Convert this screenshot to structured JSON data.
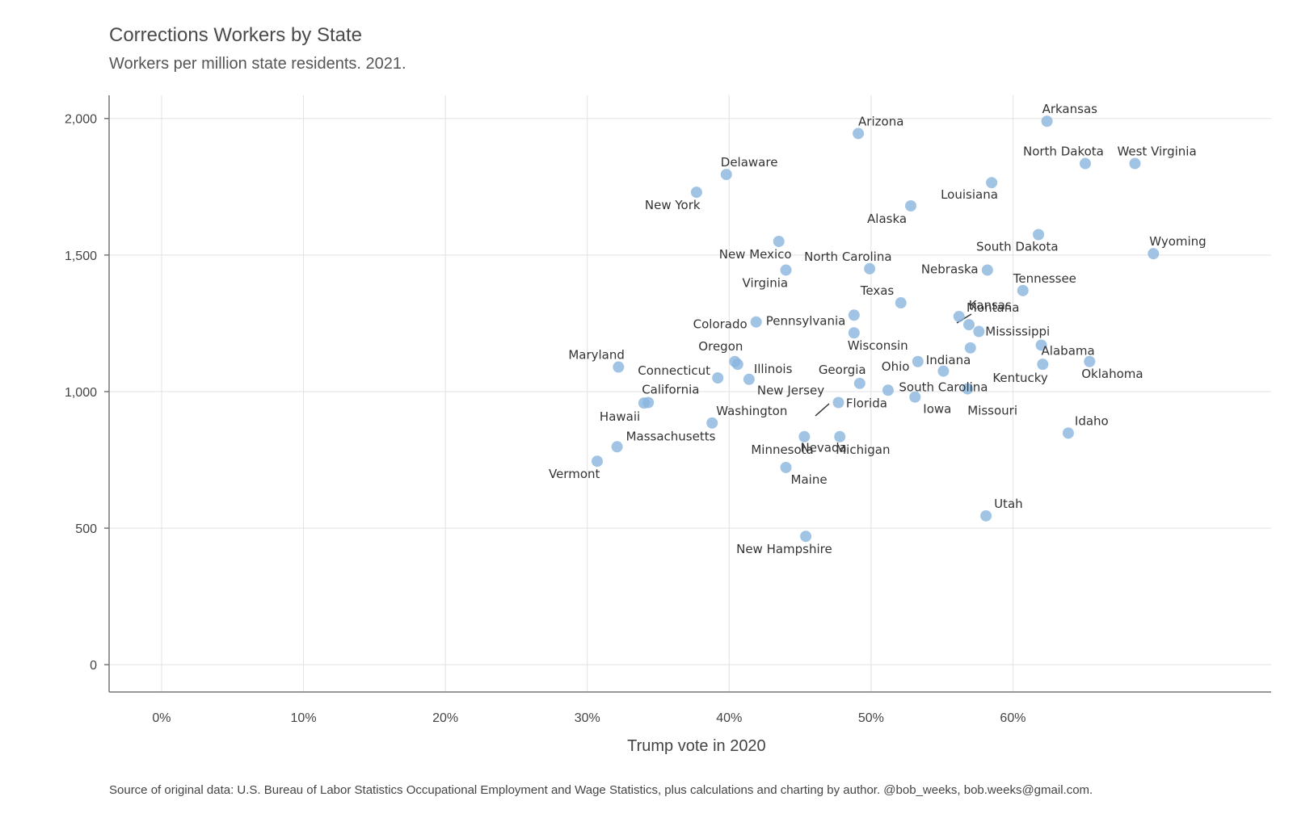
{
  "chart_data": {
    "type": "scatter",
    "title": "Corrections Workers by State",
    "subtitle": "Workers per million state residents. 2021.",
    "xlabel": "Trump vote in 2020",
    "ylabel": "",
    "xlim": [
      -3.7,
      78.2
    ],
    "ylim": [
      -100,
      2085
    ],
    "x_ticks": [
      0,
      10,
      20,
      30,
      40,
      50,
      60
    ],
    "x_tick_labels": [
      "0%",
      "10%",
      "20%",
      "30%",
      "40%",
      "50%",
      "60%"
    ],
    "y_ticks": [
      0,
      500,
      1000,
      1500,
      2000
    ],
    "y_tick_labels": [
      "0",
      "500",
      "1,000",
      "1,500",
      "2,000"
    ],
    "grid": true,
    "source": "Source of original data: U.S. Bureau of Labor Statistics Occupational Employment and Wage Statistics, plus calculations and charting by author. @bob_weeks, bob.weeks@gmail.com.",
    "points": [
      {
        "state": "Arkansas",
        "x": 62.4,
        "y": 1990
      },
      {
        "state": "Arizona",
        "x": 49.1,
        "y": 1945
      },
      {
        "state": "West Virginia",
        "x": 68.6,
        "y": 1835
      },
      {
        "state": "North Dakota",
        "x": 65.1,
        "y": 1835
      },
      {
        "state": "Delaware",
        "x": 39.8,
        "y": 1795
      },
      {
        "state": "Louisiana",
        "x": 58.5,
        "y": 1765
      },
      {
        "state": "New York",
        "x": 37.7,
        "y": 1730
      },
      {
        "state": "Alaska",
        "x": 52.8,
        "y": 1680
      },
      {
        "state": "South Dakota",
        "x": 61.8,
        "y": 1575
      },
      {
        "state": "New Mexico",
        "x": 43.5,
        "y": 1550
      },
      {
        "state": "Wyoming",
        "x": 69.9,
        "y": 1505
      },
      {
        "state": "North Carolina",
        "x": 49.9,
        "y": 1450
      },
      {
        "state": "Nebraska",
        "x": 58.2,
        "y": 1445
      },
      {
        "state": "Virginia",
        "x": 44.0,
        "y": 1445
      },
      {
        "state": "Tennessee",
        "x": 60.7,
        "y": 1370
      },
      {
        "state": "Kansas",
        "x": 56.2,
        "y": 1275
      },
      {
        "state": "Texas",
        "x": 52.1,
        "y": 1325
      },
      {
        "state": "Pennsylvania",
        "x": 48.8,
        "y": 1280
      },
      {
        "state": "Colorado",
        "x": 41.9,
        "y": 1255
      },
      {
        "state": "Montana",
        "x": 56.9,
        "y": 1245
      },
      {
        "state": "Mississippi",
        "x": 57.6,
        "y": 1220
      },
      {
        "state": "Wisconsin",
        "x": 48.8,
        "y": 1215
      },
      {
        "state": "Alabama",
        "x": 62.0,
        "y": 1170
      },
      {
        "state": "Indiana",
        "x": 57.0,
        "y": 1160
      },
      {
        "state": "Ohio",
        "x": 53.3,
        "y": 1110
      },
      {
        "state": "Oregon",
        "x": 40.4,
        "y": 1110
      },
      {
        "state": "Oklahoma",
        "x": 65.4,
        "y": 1110
      },
      {
        "state": "Illinois",
        "x": 40.6,
        "y": 1100
      },
      {
        "state": "Kentucky",
        "x": 62.1,
        "y": 1100
      },
      {
        "state": "Maryland",
        "x": 32.2,
        "y": 1090
      },
      {
        "state": "Georgia",
        "x": 49.2,
        "y": 1030
      },
      {
        "state": "Missouri",
        "x": 56.8,
        "y": 1010
      },
      {
        "state": "Connecticut",
        "x": 39.2,
        "y": 1050
      },
      {
        "state": "New Jersey",
        "x": 41.4,
        "y": 1045
      },
      {
        "state": "South Carolina",
        "x": 55.1,
        "y": 1075
      },
      {
        "state": "Florida",
        "x": 51.2,
        "y": 1005
      },
      {
        "state": "Iowa",
        "x": 53.1,
        "y": 980
      },
      {
        "state": "Nevada",
        "x": 47.7,
        "y": 960
      },
      {
        "state": "California",
        "x": 34.3,
        "y": 960
      },
      {
        "state": "Hawaii",
        "x": 34.0,
        "y": 958
      },
      {
        "state": "Washington",
        "x": 38.8,
        "y": 885
      },
      {
        "state": "Idaho",
        "x": 63.9,
        "y": 848
      },
      {
        "state": "Minnesota",
        "x": 45.3,
        "y": 835
      },
      {
        "state": "Michigan",
        "x": 47.8,
        "y": 835
      },
      {
        "state": "Massachusetts",
        "x": 32.1,
        "y": 798
      },
      {
        "state": "Vermont",
        "x": 30.7,
        "y": 745
      },
      {
        "state": "Maine",
        "x": 44.0,
        "y": 722
      },
      {
        "state": "Utah",
        "x": 58.1,
        "y": 545
      },
      {
        "state": "New Hampshire",
        "x": 45.4,
        "y": 470
      }
    ]
  }
}
